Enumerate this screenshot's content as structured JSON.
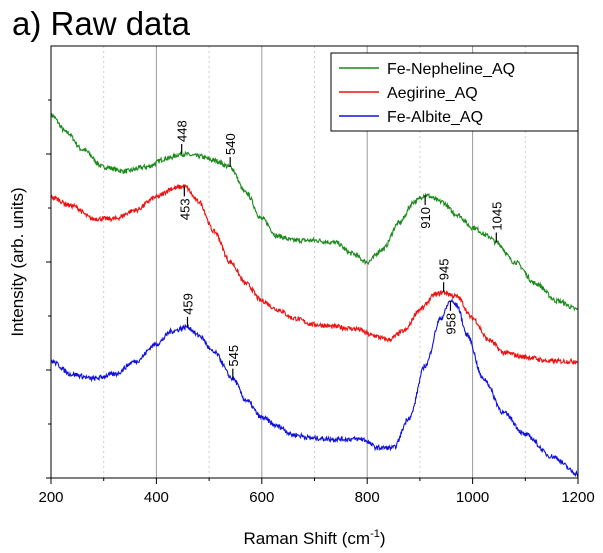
{
  "title": "a) Raw data",
  "chart_data": {
    "type": "line",
    "xlabel": "Raman Shift (cm",
    "xlabel_sup": "-1",
    "xlabel_end": ")",
    "ylabel": "Intensity (arb. units)",
    "xlim": [
      200,
      1200
    ],
    "ylim": [
      0,
      100
    ],
    "x_ticks": [
      200,
      400,
      600,
      800,
      1000,
      1200
    ],
    "grid_x": [
      400,
      600,
      800,
      1000
    ],
    "grid": "vertical",
    "legend_position": "top-right",
    "series": [
      {
        "name": "Fe-Nepheline_AQ",
        "color": "#1a8a1a",
        "points": [
          [
            200,
            84
          ],
          [
            230,
            80
          ],
          [
            260,
            76
          ],
          [
            300,
            72
          ],
          [
            340,
            71
          ],
          [
            380,
            72
          ],
          [
            420,
            74
          ],
          [
            448,
            75
          ],
          [
            480,
            74.5
          ],
          [
            510,
            73.5
          ],
          [
            540,
            72
          ],
          [
            570,
            66
          ],
          [
            600,
            60
          ],
          [
            630,
            56
          ],
          [
            660,
            55
          ],
          [
            700,
            55
          ],
          [
            740,
            54.5
          ],
          [
            770,
            52
          ],
          [
            800,
            50
          ],
          [
            830,
            53
          ],
          [
            860,
            59
          ],
          [
            890,
            64
          ],
          [
            910,
            65.5
          ],
          [
            940,
            64
          ],
          [
            970,
            61
          ],
          [
            1000,
            58
          ],
          [
            1030,
            56
          ],
          [
            1045,
            54.5
          ],
          [
            1080,
            50
          ],
          [
            1120,
            45
          ],
          [
            1160,
            41
          ],
          [
            1200,
            39
          ]
        ],
        "peaks": [
          {
            "x": 448,
            "label": "448",
            "side": "above"
          },
          {
            "x": 540,
            "label": "540",
            "side": "above"
          },
          {
            "x": 910,
            "label": "910",
            "side": "below"
          },
          {
            "x": 1045,
            "label": "1045",
            "side": "above"
          }
        ]
      },
      {
        "name": "Aegirine_AQ",
        "color": "#ee1111",
        "points": [
          [
            200,
            65
          ],
          [
            240,
            63
          ],
          [
            280,
            60
          ],
          [
            320,
            60
          ],
          [
            360,
            62
          ],
          [
            400,
            65
          ],
          [
            430,
            67
          ],
          [
            453,
            67.5
          ],
          [
            480,
            64
          ],
          [
            510,
            57
          ],
          [
            540,
            50
          ],
          [
            570,
            45
          ],
          [
            600,
            41
          ],
          [
            630,
            39
          ],
          [
            660,
            37
          ],
          [
            700,
            35.5
          ],
          [
            740,
            35
          ],
          [
            780,
            34.5
          ],
          [
            810,
            33
          ],
          [
            840,
            32
          ],
          [
            870,
            34
          ],
          [
            900,
            39
          ],
          [
            930,
            42.5
          ],
          [
            945,
            43
          ],
          [
            970,
            42
          ],
          [
            1000,
            37
          ],
          [
            1030,
            32
          ],
          [
            1060,
            29
          ],
          [
            1100,
            28
          ],
          [
            1150,
            27
          ],
          [
            1200,
            27
          ]
        ],
        "peaks": [
          {
            "x": 453,
            "label": "453",
            "side": "below"
          },
          {
            "x": 945,
            "label": "945",
            "side": "above"
          }
        ]
      },
      {
        "name": "Fe-Albite_AQ",
        "color": "#1111dd",
        "points": [
          [
            200,
            27
          ],
          [
            240,
            24
          ],
          [
            280,
            23
          ],
          [
            320,
            24
          ],
          [
            360,
            27
          ],
          [
            400,
            31
          ],
          [
            430,
            34
          ],
          [
            459,
            35
          ],
          [
            480,
            33
          ],
          [
            510,
            29
          ],
          [
            545,
            23
          ],
          [
            570,
            18
          ],
          [
            600,
            14
          ],
          [
            630,
            12
          ],
          [
            660,
            10
          ],
          [
            700,
            9.2
          ],
          [
            740,
            9
          ],
          [
            790,
            9
          ],
          [
            820,
            7
          ],
          [
            850,
            7
          ],
          [
            880,
            14
          ],
          [
            910,
            26
          ],
          [
            940,
            37
          ],
          [
            958,
            41
          ],
          [
            970,
            40
          ],
          [
            990,
            33
          ],
          [
            1020,
            23
          ],
          [
            1060,
            15
          ],
          [
            1100,
            10
          ],
          [
            1150,
            5
          ],
          [
            1200,
            1
          ]
        ],
        "peaks": [
          {
            "x": 459,
            "label": "459",
            "side": "above"
          },
          {
            "x": 545,
            "label": "545",
            "side": "above"
          },
          {
            "x": 958,
            "label": "958",
            "side": "below"
          }
        ]
      }
    ]
  }
}
